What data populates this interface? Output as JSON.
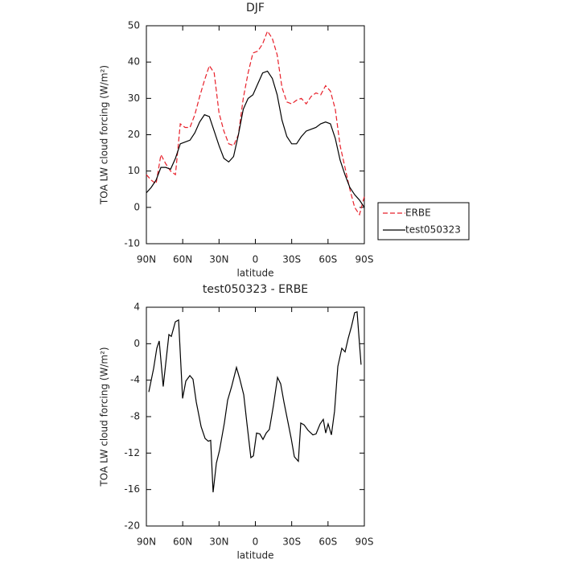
{
  "chart_data": [
    {
      "type": "line",
      "title": "DJF",
      "xlabel": "latitude",
      "ylabel": "TOA LW cloud forcing (W/m²)",
      "xlim": [
        90,
        -90
      ],
      "xticks": [
        {
          "value": 90,
          "label": "90N"
        },
        {
          "value": 60,
          "label": "60N"
        },
        {
          "value": 30,
          "label": "30N"
        },
        0,
        {
          "value": -30,
          "label": "30S"
        },
        {
          "value": -60,
          "label": "60S"
        },
        {
          "value": -90,
          "label": "90S"
        }
      ],
      "ylim": [
        -10,
        50
      ],
      "yticks": [
        -10,
        0,
        10,
        20,
        30,
        40,
        50
      ],
      "legend": "right",
      "x": [
        90,
        86,
        82,
        78,
        74,
        70,
        66,
        62,
        58,
        54,
        50,
        46,
        42,
        38,
        34,
        30,
        26,
        22,
        18,
        14,
        10,
        6,
        2,
        -2,
        -6,
        -10,
        -14,
        -18,
        -22,
        -26,
        -30,
        -34,
        -38,
        -42,
        -46,
        -50,
        -54,
        -58,
        -62,
        -66,
        -70,
        -74,
        -78,
        -82,
        -86,
        -90
      ],
      "series": [
        {
          "name": "ERBE",
          "color": "#e8202a",
          "dash": true,
          "values": [
            9,
            7.5,
            6.5,
            14.5,
            12,
            10,
            9,
            23,
            22,
            22,
            25.5,
            30.5,
            35,
            39,
            37,
            26,
            21,
            17.5,
            17,
            20,
            30,
            37,
            42.5,
            43,
            45,
            48.5,
            46.5,
            42,
            33,
            29,
            28.5,
            29.5,
            30,
            28.5,
            30.5,
            31.5,
            31,
            33.5,
            32,
            27,
            17,
            11,
            5,
            0,
            -2,
            3
          ]
        },
        {
          "name": "test050323",
          "color": "#000000",
          "dash": false,
          "values": [
            4,
            5.5,
            7.5,
            11,
            11,
            10.5,
            13.5,
            17.5,
            18,
            18.5,
            20.5,
            23.5,
            25.5,
            25,
            21,
            17,
            13.5,
            12.5,
            14,
            20,
            27,
            30,
            31,
            34,
            37,
            37.5,
            35.5,
            31,
            24,
            19.5,
            17.5,
            17.5,
            19.5,
            21,
            21.5,
            22,
            23,
            23.5,
            23,
            19,
            13,
            9,
            5.5,
            3.5,
            2,
            0
          ]
        }
      ]
    },
    {
      "type": "line",
      "title": "test050323 - ERBE",
      "xlabel": "latitude",
      "ylabel": "TOA LW cloud forcing (W/m²)",
      "xlim": [
        90,
        -90
      ],
      "xticks": [
        {
          "value": 90,
          "label": "90N"
        },
        {
          "value": 60,
          "label": "60N"
        },
        {
          "value": 30,
          "label": "30N"
        },
        0,
        {
          "value": -30,
          "label": "30S"
        },
        {
          "value": -60,
          "label": "60S"
        },
        {
          "value": -90,
          "label": "90S"
        }
      ],
      "ylim": [
        -20,
        4
      ],
      "yticks": [
        -20,
        -16,
        -12,
        -8,
        -4,
        0,
        4
      ],
      "x": [
        88,
        84,
        81.4,
        79.4,
        76.1,
        71.4,
        69.4,
        66.1,
        63.4,
        60.1,
        57.4,
        54.1,
        51.5,
        48.8,
        44.8,
        41.5,
        38.9,
        36.9,
        34.9,
        32.2,
        29.6,
        25.6,
        22.9,
        19.6,
        15.6,
        13,
        9.6,
        7,
        3.7,
        1.6,
        -1,
        -3.7,
        -6.3,
        -9,
        -11.6,
        -14.9,
        -18.3,
        -20.9,
        -23.6,
        -26.9,
        -29.6,
        -32.2,
        -35.5,
        -37.5,
        -40.2,
        -43.5,
        -47.5,
        -50.1,
        -53.5,
        -56.1,
        -58.1,
        -60.1,
        -62.8,
        -65.4,
        -68.1,
        -71.4,
        -74.1,
        -76.7,
        -79.4,
        -82,
        -84,
        -87.3
      ],
      "series": [
        {
          "color": "#000000",
          "dash": false,
          "values": [
            -5.3,
            -2.7,
            -0.5,
            0.3,
            -4.7,
            1,
            0.8,
            2.4,
            2.6,
            -6,
            -4.1,
            -3.5,
            -3.9,
            -6.4,
            -9.1,
            -10.4,
            -10.7,
            -10.6,
            -16.3,
            -13.1,
            -11.7,
            -8.7,
            -6.2,
            -4.7,
            -2.6,
            -3.8,
            -5.6,
            -8.7,
            -12.5,
            -12.3,
            -9.8,
            -9.9,
            -10.5,
            -9.8,
            -9.4,
            -6.8,
            -3.7,
            -4.4,
            -6.4,
            -8.6,
            -10.4,
            -12.4,
            -12.9,
            -8.7,
            -8.9,
            -9.5,
            -10,
            -9.9,
            -8.8,
            -8.3,
            -9.8,
            -8.8,
            -10,
            -7.4,
            -2.5,
            -0.5,
            -0.9,
            0.6,
            1.9,
            3.4,
            3.5,
            -2.3
          ]
        }
      ]
    }
  ]
}
